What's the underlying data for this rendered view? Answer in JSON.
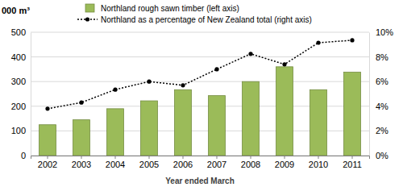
{
  "chart_data": {
    "type": "bar",
    "y_label": "000 m³",
    "x_label": "Year ended March",
    "categories": [
      "2002",
      "2003",
      "2004",
      "2005",
      "2006",
      "2007",
      "2008",
      "2009",
      "2010",
      "2011"
    ],
    "series": [
      {
        "name": "Northland rough sawn timber (left axis)",
        "type": "bar",
        "color": "#9bbb59",
        "values": [
          125,
          145,
          190,
          222,
          267,
          243,
          300,
          360,
          267,
          338
        ]
      },
      {
        "name": "Northland as a percentage of New Zealand total (right axis)",
        "type": "line",
        "axis": "y2",
        "color": "#000000",
        "marker": "circle",
        "line_style": "dotted",
        "values": [
          3.8,
          4.3,
          5.35,
          6.0,
          5.7,
          7.0,
          8.25,
          7.4,
          9.15,
          9.35
        ]
      }
    ],
    "ylim": [
      0,
      500
    ],
    "yticks": [
      0,
      100,
      200,
      300,
      400,
      500
    ],
    "y2lim": [
      0,
      10
    ],
    "y2ticks": [
      {
        "value": 0,
        "label": "0%"
      },
      {
        "value": 2,
        "label": "2%"
      },
      {
        "value": 4,
        "label": "4%"
      },
      {
        "value": 6,
        "label": "6%"
      },
      {
        "value": 8,
        "label": "8%"
      },
      {
        "value": 10,
        "label": "10%"
      }
    ],
    "grid": true,
    "legend": "top"
  }
}
